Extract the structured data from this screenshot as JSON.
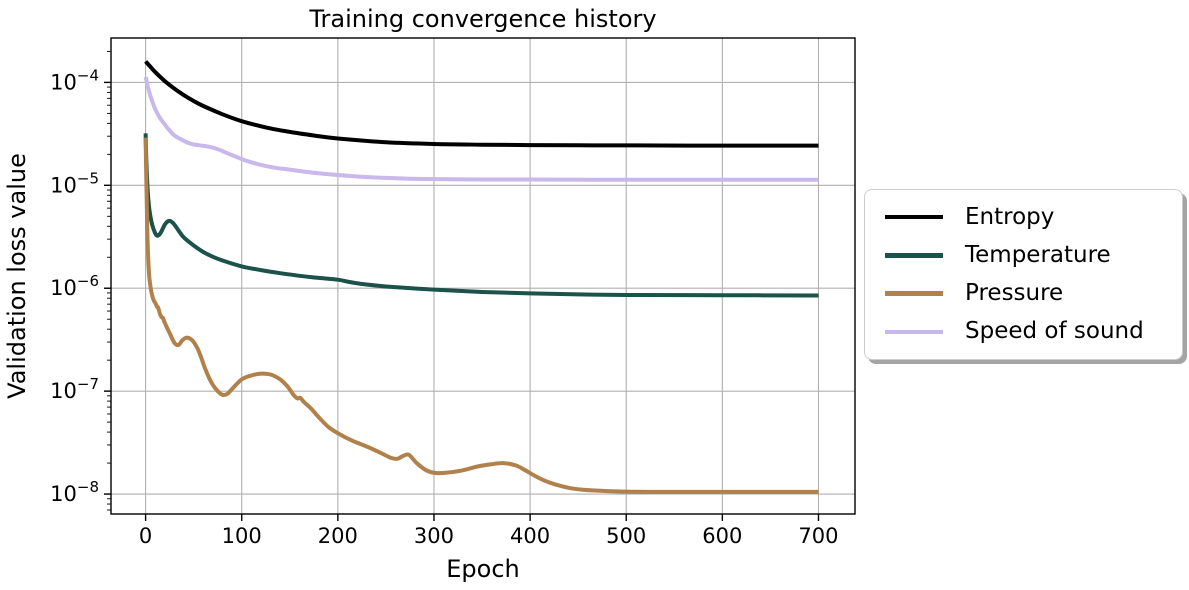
{
  "chart_data": {
    "type": "line",
    "title": "Training convergence history",
    "xlabel": "Epoch",
    "ylabel": "Validation loss value",
    "xscale": "linear",
    "yscale": "log",
    "grid": true,
    "legend_position": "outside right",
    "xlim": [
      -36,
      738
    ],
    "ylim": [
      6.4e-09,
      0.00027
    ],
    "xticks": [
      0,
      100,
      200,
      300,
      400,
      500,
      600,
      700
    ],
    "ytick_exponents": [
      -4,
      -5,
      -6,
      -7,
      -8
    ],
    "axis_color": "#000000",
    "grid_color": "#b0b0b0",
    "series": [
      {
        "name": "Entropy",
        "color": "#000000",
        "points": [
          [
            0,
            0.00016
          ],
          [
            5,
            0.000142
          ],
          [
            10,
            0.000126
          ],
          [
            20,
            0.000103
          ],
          [
            30,
            8.7e-05
          ],
          [
            40,
            7.5e-05
          ],
          [
            50,
            6.6e-05
          ],
          [
            60,
            5.9e-05
          ],
          [
            80,
            4.9e-05
          ],
          [
            100,
            4.2e-05
          ],
          [
            125,
            3.65e-05
          ],
          [
            150,
            3.3e-05
          ],
          [
            175,
            3.05e-05
          ],
          [
            200,
            2.85e-05
          ],
          [
            250,
            2.62e-05
          ],
          [
            300,
            2.52e-05
          ],
          [
            350,
            2.48e-05
          ],
          [
            400,
            2.46e-05
          ],
          [
            450,
            2.45e-05
          ],
          [
            500,
            2.44e-05
          ],
          [
            600,
            2.43e-05
          ],
          [
            700,
            2.43e-05
          ]
        ]
      },
      {
        "name": "Temperature",
        "color": "#1b524a",
        "points": [
          [
            0,
            3.2e-05
          ],
          [
            1,
            1.5e-05
          ],
          [
            3,
            7e-06
          ],
          [
            5,
            5e-06
          ],
          [
            7,
            4.1e-06
          ],
          [
            9,
            3.6e-06
          ],
          [
            11,
            3.3e-06
          ],
          [
            13,
            3.25e-06
          ],
          [
            16,
            3.5e-06
          ],
          [
            20,
            4.15e-06
          ],
          [
            24,
            4.5e-06
          ],
          [
            28,
            4.35e-06
          ],
          [
            32,
            3.9e-06
          ],
          [
            36,
            3.45e-06
          ],
          [
            40,
            3.1e-06
          ],
          [
            50,
            2.6e-06
          ],
          [
            60,
            2.25e-06
          ],
          [
            70,
            2.02e-06
          ],
          [
            80,
            1.86e-06
          ],
          [
            100,
            1.63e-06
          ],
          [
            120,
            1.5e-06
          ],
          [
            140,
            1.4e-06
          ],
          [
            160,
            1.32e-06
          ],
          [
            180,
            1.26e-06
          ],
          [
            200,
            1.21e-06
          ],
          [
            212,
            1.15e-06
          ],
          [
            225,
            1.1e-06
          ],
          [
            250,
            1.04e-06
          ],
          [
            300,
            9.7e-07
          ],
          [
            350,
            9.2e-07
          ],
          [
            400,
            8.9e-07
          ],
          [
            450,
            8.7e-07
          ],
          [
            500,
            8.6e-07
          ],
          [
            600,
            8.55e-07
          ],
          [
            700,
            8.5e-07
          ]
        ]
      },
      {
        "name": "Pressure",
        "color": "#b0814a",
        "points": [
          [
            0,
            2.9e-05
          ],
          [
            1,
            8e-06
          ],
          [
            2,
            3e-06
          ],
          [
            3,
            1.7e-06
          ],
          [
            4,
            1.25e-06
          ],
          [
            5,
            1.05e-06
          ],
          [
            6,
            9.2e-07
          ],
          [
            8,
            7.8e-07
          ],
          [
            10,
            7.2e-07
          ],
          [
            12,
            6.6e-07
          ],
          [
            13,
            6.5e-07
          ],
          [
            15,
            5.6e-07
          ],
          [
            17,
            5.2e-07
          ],
          [
            18,
            5.15e-07
          ],
          [
            20,
            4.6e-07
          ],
          [
            23,
            4e-07
          ],
          [
            26,
            3.5e-07
          ],
          [
            30,
            2.95e-07
          ],
          [
            34,
            2.8e-07
          ],
          [
            38,
            3.1e-07
          ],
          [
            42,
            3.3e-07
          ],
          [
            46,
            3.25e-07
          ],
          [
            50,
            3e-07
          ],
          [
            54,
            2.6e-07
          ],
          [
            58,
            2.1e-07
          ],
          [
            62,
            1.65e-07
          ],
          [
            66,
            1.35e-07
          ],
          [
            70,
            1.15e-07
          ],
          [
            75,
            1e-07
          ],
          [
            80,
            9.2e-08
          ],
          [
            85,
            9.4e-08
          ],
          [
            90,
            1.05e-07
          ],
          [
            100,
            1.3e-07
          ],
          [
            110,
            1.42e-07
          ],
          [
            120,
            1.48e-07
          ],
          [
            130,
            1.45e-07
          ],
          [
            140,
            1.3e-07
          ],
          [
            148,
            1.1e-07
          ],
          [
            154,
            9.2e-08
          ],
          [
            158,
            8.5e-08
          ],
          [
            161,
            8.6e-08
          ],
          [
            165,
            7.8e-08
          ],
          [
            172,
            6.8e-08
          ],
          [
            180,
            5.6e-08
          ],
          [
            190,
            4.5e-08
          ],
          [
            200,
            3.9e-08
          ],
          [
            215,
            3.3e-08
          ],
          [
            230,
            2.9e-08
          ],
          [
            245,
            2.5e-08
          ],
          [
            255,
            2.25e-08
          ],
          [
            262,
            2.2e-08
          ],
          [
            268,
            2.35e-08
          ],
          [
            274,
            2.4e-08
          ],
          [
            282,
            2e-08
          ],
          [
            292,
            1.7e-08
          ],
          [
            302,
            1.6e-08
          ],
          [
            315,
            1.62e-08
          ],
          [
            330,
            1.7e-08
          ],
          [
            345,
            1.85e-08
          ],
          [
            360,
            1.95e-08
          ],
          [
            372,
            2e-08
          ],
          [
            385,
            1.9e-08
          ],
          [
            395,
            1.7e-08
          ],
          [
            405,
            1.5e-08
          ],
          [
            415,
            1.35e-08
          ],
          [
            425,
            1.25e-08
          ],
          [
            440,
            1.15e-08
          ],
          [
            455,
            1.1e-08
          ],
          [
            470,
            1.08e-08
          ],
          [
            490,
            1.06e-08
          ],
          [
            520,
            1.05e-08
          ],
          [
            560,
            1.05e-08
          ],
          [
            600,
            1.05e-08
          ],
          [
            650,
            1.05e-08
          ],
          [
            700,
            1.05e-08
          ]
        ]
      },
      {
        "name": "Speed of sound",
        "color": "#c9b8eb",
        "points": [
          [
            0,
            0.000113
          ],
          [
            3,
            8.6e-05
          ],
          [
            6,
            6.9e-05
          ],
          [
            10,
            5.5e-05
          ],
          [
            15,
            4.5e-05
          ],
          [
            20,
            3.9e-05
          ],
          [
            25,
            3.4e-05
          ],
          [
            30,
            3.05e-05
          ],
          [
            40,
            2.7e-05
          ],
          [
            48,
            2.52e-05
          ],
          [
            56,
            2.45e-05
          ],
          [
            65,
            2.38e-05
          ],
          [
            75,
            2.25e-05
          ],
          [
            85,
            2.05e-05
          ],
          [
            95,
            1.88e-05
          ],
          [
            105,
            1.73e-05
          ],
          [
            120,
            1.58e-05
          ],
          [
            135,
            1.48e-05
          ],
          [
            150,
            1.42e-05
          ],
          [
            165,
            1.36e-05
          ],
          [
            180,
            1.31e-05
          ],
          [
            200,
            1.26e-05
          ],
          [
            225,
            1.21e-05
          ],
          [
            250,
            1.18e-05
          ],
          [
            275,
            1.16e-05
          ],
          [
            300,
            1.15e-05
          ],
          [
            350,
            1.14e-05
          ],
          [
            400,
            1.14e-05
          ],
          [
            500,
            1.13e-05
          ],
          [
            600,
            1.13e-05
          ],
          [
            700,
            1.13e-05
          ]
        ]
      }
    ]
  }
}
